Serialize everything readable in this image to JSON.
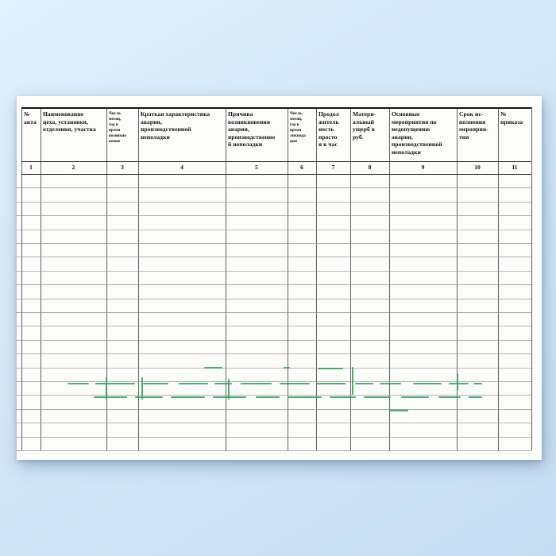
{
  "table": {
    "columns": [
      {
        "num": "1",
        "label": "№\nакта",
        "small": false
      },
      {
        "num": "2",
        "label": "Наименование\nцеха, установки,\nотделения, участка",
        "small": false
      },
      {
        "num": "3",
        "label": "Число,\nмесяц,\nгод и\nвремя\nвозникно\nвения",
        "small": true
      },
      {
        "num": "4",
        "label": "Краткая характеристика\nаварии,\nпроизводственной\nнеполадки",
        "small": false
      },
      {
        "num": "5",
        "label": "Причина\nвозникновения\nаварии,\nпроизводственно\nй неполадки",
        "small": false
      },
      {
        "num": "6",
        "label": "Число,\nмесяц,\nгод и\nвремя\nликвида\nции",
        "small": true
      },
      {
        "num": "7",
        "label": "Продол\nжитель\nность\nпросто\nя в час",
        "small": false
      },
      {
        "num": "8",
        "label": "Матери-\nальный\nущерб в\nруб.",
        "small": false
      },
      {
        "num": "9",
        "label": "Основные\nмероприятия по\nнедопущению\nаварии,\nпроизводственной\nнеполадки",
        "small": false
      },
      {
        "num": "10",
        "label": "Срок ис-\nполнения\nмероприя-\nтия",
        "small": false
      },
      {
        "num": "11",
        "label": "№\nприказа",
        "small": false
      }
    ],
    "empty_row_count": 20
  },
  "colors": {
    "scan_mark_green": "#2aa35c",
    "background_blue": "#cfe4f6",
    "page_white": "#fcfcfb",
    "grid_line_gray": "#8d8d8d",
    "border_black": "#262626"
  }
}
